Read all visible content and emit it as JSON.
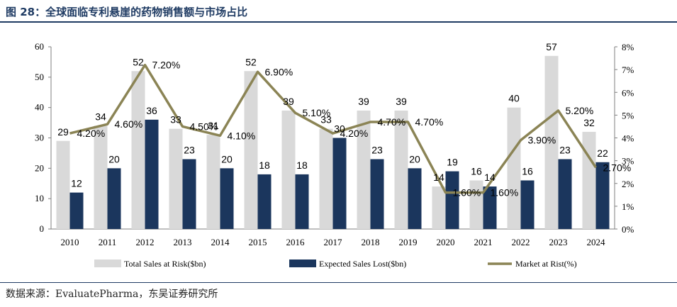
{
  "header": {
    "title": "图 28：全球面临专利悬崖的药物销售额与市场占比"
  },
  "footer": {
    "source": "数据来源：EvaluatePharma，东吴证券研究所"
  },
  "colors": {
    "total": "#d9d9d9",
    "lost": "#1b365d",
    "share": "#8b8455",
    "title": "#1f3b63"
  },
  "chart_data": {
    "type": "bar",
    "title": "全球面临专利悬崖的药物销售额与市场占比",
    "categories": [
      "2010",
      "2011",
      "2012",
      "2013",
      "2014",
      "2015",
      "2016",
      "2017",
      "2018",
      "2019",
      "2020",
      "2021",
      "2022",
      "2023",
      "2024"
    ],
    "series": [
      {
        "name": "Total  Sales at Risk($bn)",
        "kind": "bar",
        "axis": "left",
        "values": [
          29,
          34,
          52,
          33,
          31,
          52,
          39,
          33,
          39,
          39,
          14,
          16,
          40,
          57,
          32
        ],
        "labels": [
          "29",
          "34",
          "52",
          "33",
          "31",
          "52",
          "39",
          "33",
          "39",
          "39",
          "14",
          "16",
          "40",
          "57",
          "32"
        ]
      },
      {
        "name": "Expected Sales Lost($bn)",
        "kind": "bar",
        "axis": "left",
        "values": [
          12,
          20,
          36,
          23,
          20,
          18,
          18,
          30,
          23,
          20,
          19,
          14,
          16,
          23,
          22
        ],
        "labels": [
          "12",
          "20",
          "36",
          "23",
          "20",
          "18",
          "18",
          "30",
          "23",
          "20",
          "19",
          "14",
          "16",
          "23",
          "22"
        ]
      },
      {
        "name": "Market at Rist(%)",
        "kind": "line",
        "axis": "right",
        "values": [
          4.2,
          4.6,
          7.2,
          4.5,
          4.1,
          6.9,
          5.1,
          4.2,
          4.7,
          4.7,
          1.6,
          1.6,
          3.9,
          5.2,
          2.7
        ],
        "labels": [
          "4.20%",
          "4.60%",
          "7.20%",
          "4.50%",
          "4.10%",
          "6.90%",
          "5.10%",
          "4.20%",
          "4.70%",
          "4.70%",
          "1.60%",
          "1.60%",
          "3.90%",
          "5.20%",
          "2.70%"
        ]
      }
    ],
    "y_left": {
      "min": 0,
      "max": 60,
      "ticks": [
        "0",
        "10",
        "20",
        "30",
        "40",
        "50",
        "60"
      ]
    },
    "y_right": {
      "min": 0,
      "max": 8,
      "ticks": [
        "0%",
        "1%",
        "2%",
        "3%",
        "4%",
        "5%",
        "6%",
        "7%",
        "8%"
      ]
    },
    "legend": "bottom"
  }
}
